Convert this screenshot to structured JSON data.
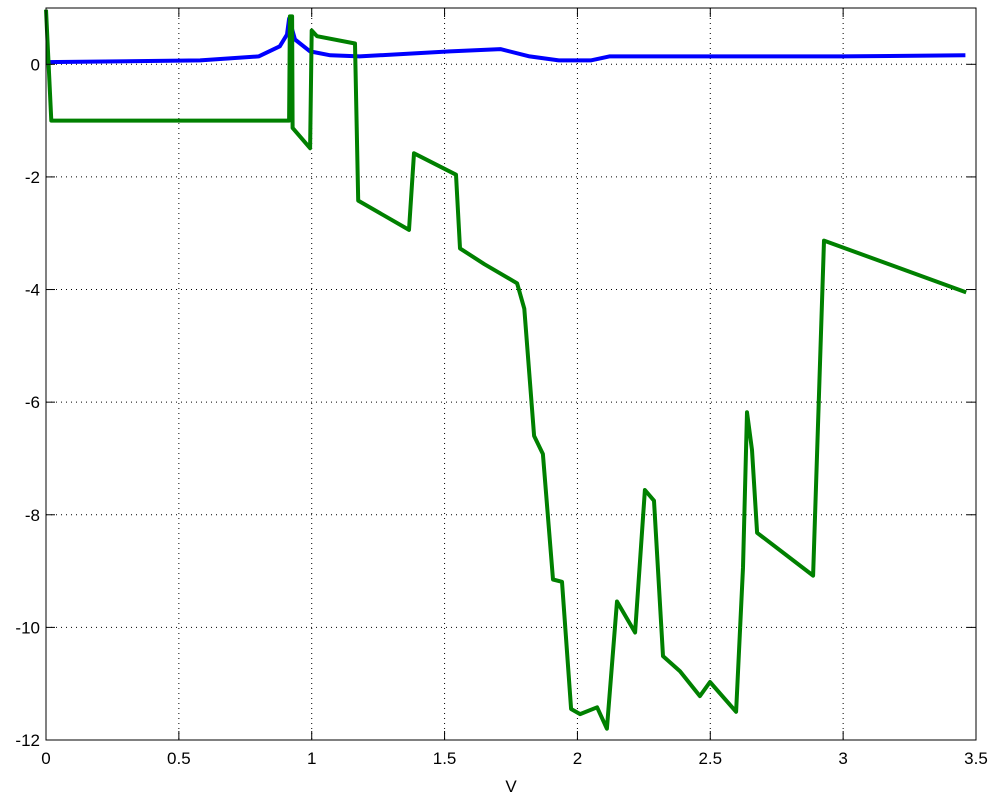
{
  "chart_data": {
    "type": "line",
    "title": "",
    "xlabel": "V",
    "ylabel": "",
    "xlim": [
      0,
      3.5
    ],
    "ylim": [
      -12,
      1
    ],
    "xticks": [
      0,
      0.5,
      1,
      1.5,
      2,
      2.5,
      3,
      3.5
    ],
    "xtick_labels": [
      "0",
      "0.5",
      "1",
      "1.5",
      "2",
      "2.5",
      "3",
      "3.5"
    ],
    "yticks": [
      -12,
      -10,
      -8,
      -6,
      -4,
      -2,
      0
    ],
    "ytick_labels": [
      "-12",
      "-10",
      "-8",
      "-6",
      "-4",
      "-2",
      "0"
    ],
    "grid": true,
    "series": [
      {
        "color": "#0000ff",
        "points": [
          [
            0,
            0.04
          ],
          [
            0.58,
            0.07
          ],
          [
            0.8,
            0.14
          ],
          [
            0.88,
            0.32
          ],
          [
            0.907,
            0.53
          ],
          [
            0.915,
            0.81
          ],
          [
            0.937,
            0.44
          ],
          [
            0.994,
            0.23
          ],
          [
            1.07,
            0.16
          ],
          [
            1.18,
            0.14
          ],
          [
            1.52,
            0.23
          ],
          [
            1.71,
            0.27
          ],
          [
            1.82,
            0.14
          ],
          [
            1.93,
            0.07
          ],
          [
            2.05,
            0.07
          ],
          [
            2.12,
            0.14
          ],
          [
            2.46,
            0.14
          ],
          [
            2.99,
            0.14
          ],
          [
            3.46,
            0.16
          ]
        ]
      },
      {
        "color": "#008000",
        "points": [
          [
            0,
            0.97
          ],
          [
            0.02,
            -1.0
          ],
          [
            0.907,
            -1.0
          ],
          [
            0.915,
            -1.0
          ],
          [
            0.918,
            0.85
          ],
          [
            0.926,
            0.85
          ],
          [
            0.928,
            -1.13
          ],
          [
            0.994,
            -1.49
          ],
          [
            1.0,
            0.6
          ],
          [
            1.02,
            0.5
          ],
          [
            1.163,
            0.37
          ],
          [
            1.175,
            -2.42
          ],
          [
            1.366,
            -2.94
          ],
          [
            1.385,
            -1.58
          ],
          [
            1.543,
            -1.96
          ],
          [
            1.558,
            -3.27
          ],
          [
            1.65,
            -3.55
          ],
          [
            1.773,
            -3.89
          ],
          [
            1.8,
            -4.34
          ],
          [
            1.837,
            -6.6
          ],
          [
            1.87,
            -6.92
          ],
          [
            1.908,
            -9.15
          ],
          [
            1.942,
            -9.19
          ],
          [
            1.976,
            -11.45
          ],
          [
            2.01,
            -11.54
          ],
          [
            2.074,
            -11.42
          ],
          [
            2.111,
            -11.8
          ],
          [
            2.149,
            -9.54
          ],
          [
            2.217,
            -10.09
          ],
          [
            2.254,
            -7.56
          ],
          [
            2.288,
            -7.75
          ],
          [
            2.322,
            -10.51
          ],
          [
            2.386,
            -10.78
          ],
          [
            2.461,
            -11.22
          ],
          [
            2.499,
            -10.97
          ],
          [
            2.597,
            -11.5
          ],
          [
            2.623,
            -8.94
          ],
          [
            2.638,
            -6.18
          ],
          [
            2.657,
            -6.85
          ],
          [
            2.676,
            -8.32
          ],
          [
            2.887,
            -9.08
          ],
          [
            2.928,
            -3.13
          ],
          [
            3.463,
            -4.05
          ]
        ]
      }
    ]
  }
}
